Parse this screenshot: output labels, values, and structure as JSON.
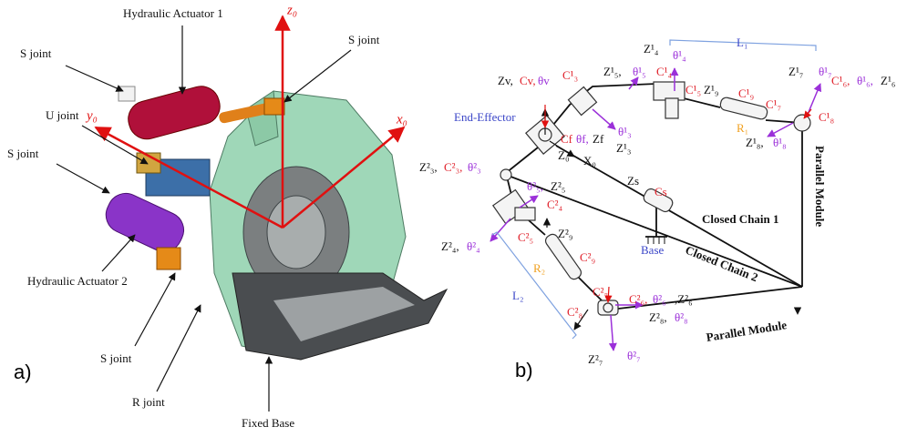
{
  "panel_a": {
    "label": "a)",
    "axes": [
      "z₀",
      "y₀",
      "x₀"
    ],
    "callouts": [
      "Hydraulic Actuator 1",
      "S joint",
      "S joint",
      "U joint",
      "S joint",
      "Hydraulic Actuator 2",
      "S joint",
      "R joint",
      "Fixed Base"
    ]
  },
  "panel_b": {
    "label": "b)",
    "labels": [
      "L₁",
      "Z¹₄",
      "θ¹₄",
      "Z¹₅,",
      "θ¹₅",
      "C¹₄",
      "C¹₅",
      "Z¹₉",
      "C¹₉",
      "Z¹₇",
      "θ¹₇",
      "C¹₇",
      "C¹₆,",
      "θ¹₆,",
      "Z¹₆",
      "C¹₈",
      "R₁",
      "Z¹₈,",
      "θ¹₈",
      "Zv,",
      "Cv,",
      "θv",
      "C¹₃",
      "End-Effector",
      "Cf",
      "θf,",
      "Zf",
      "θ¹₃",
      "Z¹₃",
      "Z₀",
      "X₀",
      "Z²₃,",
      "C²₃,",
      "θ²₃",
      "θ²₅,",
      "Z²₅",
      "Zs",
      "Cs",
      "C²₄",
      "Closed Chain 1",
      "Z²₉",
      "Base",
      "Z²₄,",
      "θ²₄",
      "C²₅",
      "Closed Chain 2",
      "Parallel Module",
      "R₂",
      "C²₉",
      "L₂",
      "C²₇",
      "C²₆,",
      "θ²₆",
      ",Z²₆",
      "C²₈",
      "Z²₈,",
      "θ²₈",
      "Parallel Module",
      "Z²₇",
      "θ²₇"
    ]
  }
}
